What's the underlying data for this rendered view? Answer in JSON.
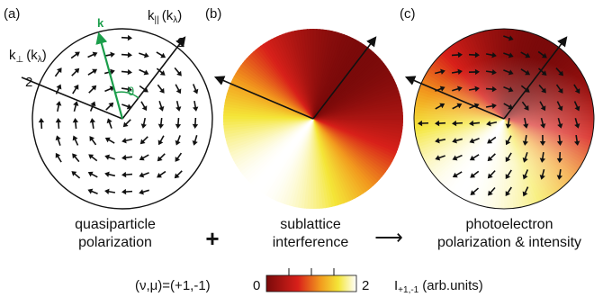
{
  "panels": [
    {
      "letter": "(a)",
      "caption": [
        "quasiparticle",
        "polarization"
      ]
    },
    {
      "letter": "(b)",
      "caption": [
        "sublattice",
        "interference"
      ]
    },
    {
      "letter": "(c)",
      "caption": [
        "photoelectron",
        "polarization & intensity"
      ]
    }
  ],
  "operators": {
    "plus": "+",
    "arrow": "⟶"
  },
  "axes": {
    "k_parallel_base": "k",
    "k_parallel_sub": "||",
    "k_parallel_unit": "(k",
    "k_perp_base": "k",
    "k_perp_sub": "⊥",
    "k_perp_unit": "(k",
    "lambda": "λ",
    "close_paren": ")",
    "tick": "2",
    "k_vector": "k",
    "theta": "θ"
  },
  "colorbar": {
    "prefix": "(ν,μ)=(+1,-1)",
    "min": "0",
    "max": "2",
    "label_base": "I",
    "label_sub": "+1,-1",
    "label_unit": "(arb.units)"
  },
  "colors": {
    "dark_red": "#7a0a0a",
    "red": "#d8201a",
    "orange": "#f29a1e",
    "yellow": "#f4e638",
    "white": "#ffffff",
    "green": "#1b9e4b"
  }
}
